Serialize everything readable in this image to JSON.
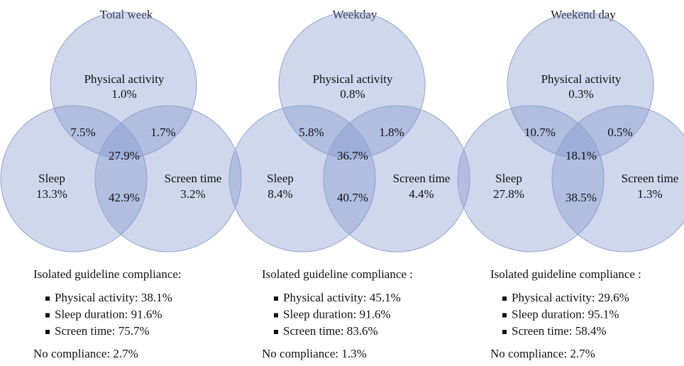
{
  "panels": [
    {
      "title": "Total week",
      "physical_activity": {
        "label": "Physical activity",
        "value": "1.0%"
      },
      "sleep": {
        "label": "Sleep",
        "value": "13.3%"
      },
      "screen_time": {
        "label": "Screen time",
        "value": "3.2%"
      },
      "pa_sleep": "7.5%",
      "pa_screen": "1.7%",
      "all_three": "27.9%",
      "sleep_screen": "42.9%",
      "compliance_heading": "Isolated guideline compliance:",
      "compliance_items": [
        "Physical activity: 38.1%",
        "Sleep duration: 91.6%",
        "Screen time: 75.7%"
      ],
      "no_compliance": "No compliance: 2.7%"
    },
    {
      "title": "Weekday",
      "physical_activity": {
        "label": "Physical activity",
        "value": "0.8%"
      },
      "sleep": {
        "label": "Sleep",
        "value": "8.4%"
      },
      "screen_time": {
        "label": "Screen time",
        "value": "4.4%"
      },
      "pa_sleep": "5.8%",
      "pa_screen": "1.8%",
      "all_three": "36.7%",
      "sleep_screen": "40.7%",
      "compliance_heading": "Isolated guideline compliance :",
      "compliance_items": [
        "Physical activity: 45.1%",
        "Sleep duration: 91.6%",
        "Screen time: 83.6%"
      ],
      "no_compliance": "No compliance: 1.3%"
    },
    {
      "title": "Weekend day",
      "physical_activity": {
        "label": "Physical activity",
        "value": "0.3%"
      },
      "sleep": {
        "label": "Sleep",
        "value": "27.8%"
      },
      "screen_time": {
        "label": "Screen time",
        "value": "1.3%"
      },
      "pa_sleep": "10.7%",
      "pa_screen": "0.5%",
      "all_three": "18.1%",
      "sleep_screen": "38.5%",
      "compliance_heading": "Isolated guideline compliance :",
      "compliance_items": [
        "Physical activity: 29.6%",
        "Sleep duration: 95.1%",
        "Screen time: 58.4%"
      ],
      "no_compliance": "No compliance: 2.7%"
    }
  ]
}
